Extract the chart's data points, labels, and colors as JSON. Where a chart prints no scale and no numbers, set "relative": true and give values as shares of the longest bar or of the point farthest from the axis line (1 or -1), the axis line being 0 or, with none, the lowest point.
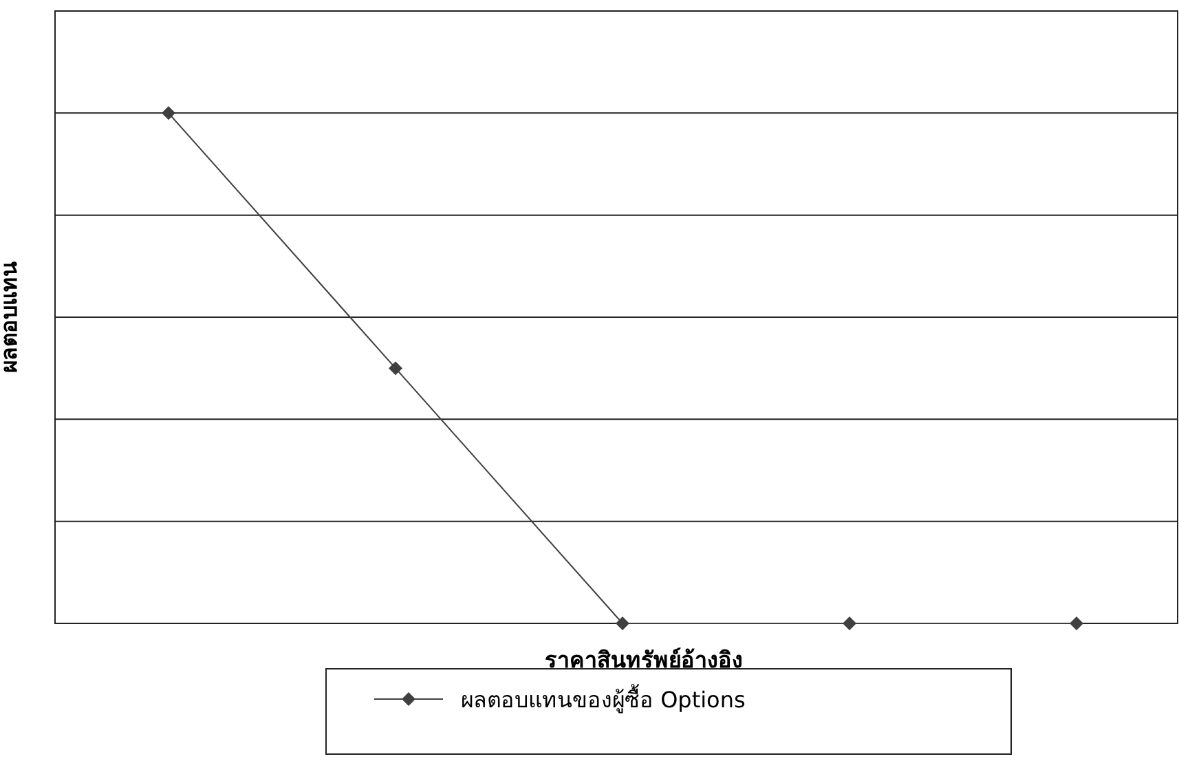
{
  "chart_data": {
    "type": "line",
    "relative": true,
    "xlabel": "ราคาสินทรัพย์อ้างอิง",
    "ylabel": "ผลตอบแทน",
    "categories": [
      null,
      null,
      null,
      null,
      null
    ],
    "series": [
      {
        "name": "ผลตอบแทนของผู้ซื้อ Options",
        "color": "#404040",
        "values": [
          1,
          0.5,
          0,
          0,
          0
        ]
      }
    ],
    "marker": "diamond",
    "grid": "y",
    "legend": "bottom"
  }
}
